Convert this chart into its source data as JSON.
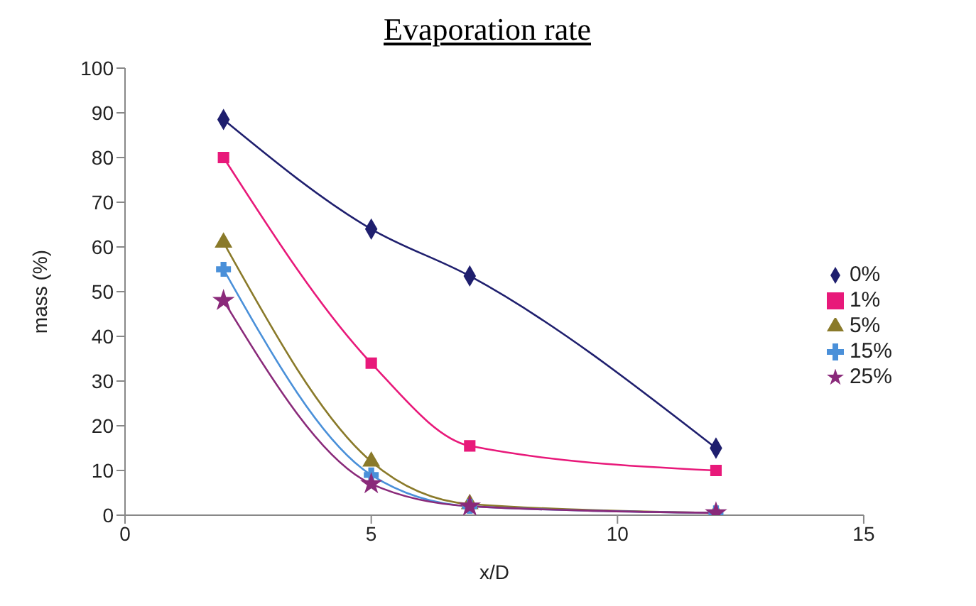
{
  "chart_data": {
    "type": "line",
    "title": "Evaporation rate",
    "xlabel": "x/D",
    "ylabel": "mass (%)",
    "x": [
      2,
      5,
      7,
      12
    ],
    "series": [
      {
        "name": "0%",
        "color": "#1f1f6e",
        "marker": "diamond",
        "values": [
          88.5,
          64,
          53.5,
          15
        ]
      },
      {
        "name": "1%",
        "color": "#e8197a",
        "marker": "square",
        "values": [
          80,
          34,
          15.5,
          10
        ]
      },
      {
        "name": "5%",
        "color": "#8a7a2a",
        "marker": "triangle",
        "values": [
          61,
          12,
          2.5,
          0.5
        ]
      },
      {
        "name": "15%",
        "color": "#4a90d9",
        "marker": "cross",
        "values": [
          55,
          9,
          2,
          0.5
        ]
      },
      {
        "name": "25%",
        "color": "#8a2a7a",
        "marker": "star",
        "values": [
          48,
          7,
          2,
          0.5
        ]
      }
    ],
    "xlim": [
      0,
      15
    ],
    "xticks": [
      0,
      5,
      10,
      15
    ],
    "ylim": [
      0,
      100
    ],
    "yticks": [
      0,
      10,
      20,
      30,
      40,
      50,
      60,
      70,
      80,
      90,
      100
    ],
    "grid": false,
    "legend": "right"
  }
}
